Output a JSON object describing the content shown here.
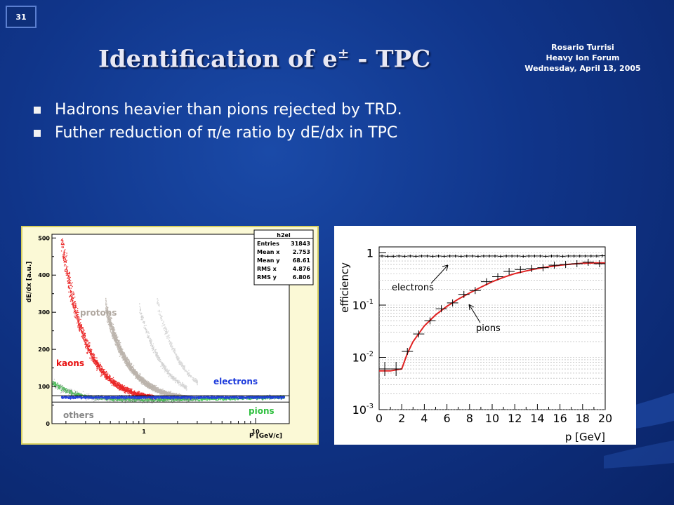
{
  "slide_number": "31",
  "title": {
    "text": "Identification of e",
    "superscript": "±",
    "suffix": " - TPC"
  },
  "author": {
    "name": "Rosario Turrisi",
    "event": "Heavy Ion Forum",
    "date": "Wednesday, April 13, 2005"
  },
  "bullets": [
    "Hadrons heavier than pions rejected by TRD.",
    "Futher reduction of  π/e ratio by dE/dx in TPC"
  ],
  "colors": {
    "background": "#10358a",
    "electrons": "#1e3cdc",
    "kaons": "#e81010",
    "protons": "#b8b0a8",
    "pions": "#30c040",
    "fit": "#e02020"
  },
  "chart_data": [
    {
      "type": "scatter",
      "ylabel": "dE/dx [a.u.]",
      "xlabel": "P [GeV/c]",
      "xscale": "log",
      "ylim": [
        0,
        510
      ],
      "y_ticks": [
        "0",
        "100",
        "200",
        "300",
        "400",
        "500"
      ],
      "x_ticks": [
        "1",
        "10"
      ],
      "labels": {
        "protons": "protons",
        "kaons": "kaons",
        "electrons": "electrons",
        "pions": "pions",
        "others": "others"
      },
      "stats": {
        "name": "h2el",
        "rows": [
          {
            "label": "Entries",
            "value": "31843"
          },
          {
            "label": "Mean x",
            "value": "2.753"
          },
          {
            "label": "Mean y",
            "value": "68.61"
          },
          {
            "label": "RMS x",
            "value": "4.876"
          },
          {
            "label": "RMS y",
            "value": "6.806"
          }
        ]
      }
    },
    {
      "type": "line",
      "ylabel": "efficiency",
      "xlabel": "p [GeV]",
      "yscale": "log",
      "xlim": [
        0,
        20
      ],
      "ylim": [
        0.001,
        1.3
      ],
      "x_ticks": [
        "0",
        "2",
        "4",
        "6",
        "8",
        "10",
        "12",
        "14",
        "16",
        "18",
        "20"
      ],
      "y_ticks": [
        {
          "base": "1",
          "exp": ""
        },
        {
          "base": "10",
          "exp": "-1"
        },
        {
          "base": "10",
          "exp": "-2"
        },
        {
          "base": "10",
          "exp": "-3"
        }
      ],
      "series": [
        {
          "name": "electrons",
          "x": [
            0.25,
            0.75,
            1.25,
            1.75,
            2.25,
            2.75,
            3.25,
            3.75,
            4.25,
            4.75,
            5.25,
            5.75,
            6.25,
            6.75,
            7.25,
            7.75,
            8.25,
            8.75,
            9.25,
            9.75,
            10.25,
            10.75,
            11.25,
            11.75,
            12.25,
            12.75,
            13.25,
            13.75,
            14.25,
            14.75,
            15.25,
            15.75,
            16.25,
            16.75,
            17.25,
            17.75,
            18.25,
            18.75,
            19.25,
            19.75
          ],
          "y": [
            0.87,
            0.86,
            0.86,
            0.87,
            0.86,
            0.87,
            0.86,
            0.87,
            0.87,
            0.86,
            0.87,
            0.86,
            0.87,
            0.87,
            0.86,
            0.87,
            0.87,
            0.86,
            0.87,
            0.87,
            0.87,
            0.86,
            0.87,
            0.87,
            0.87,
            0.86,
            0.87,
            0.87,
            0.87,
            0.86,
            0.87,
            0.87,
            0.86,
            0.87,
            0.87,
            0.87,
            0.87,
            0.87,
            0.87,
            0.88
          ]
        },
        {
          "name": "pions",
          "x": [
            0.5,
            1.5,
            2.5,
            3.5,
            4.5,
            5.5,
            6.5,
            7.5,
            8.5,
            9.5,
            10.5,
            11.5,
            12.5,
            13.5,
            14.5,
            15.5,
            16.5,
            17.5,
            18.5,
            19.5
          ],
          "y": [
            0.006,
            0.006,
            0.013,
            0.028,
            0.05,
            0.085,
            0.11,
            0.16,
            0.19,
            0.28,
            0.35,
            0.44,
            0.48,
            0.5,
            0.52,
            0.58,
            0.6,
            0.62,
            0.66,
            0.62
          ]
        }
      ],
      "fit": {
        "x": [
          0,
          1,
          2,
          2.5,
          3,
          4,
          5,
          6,
          7,
          8,
          9,
          10,
          11,
          12,
          13,
          14,
          15,
          16,
          17,
          18,
          19,
          20
        ],
        "y": [
          0.0055,
          0.0055,
          0.006,
          0.012,
          0.02,
          0.04,
          0.065,
          0.095,
          0.13,
          0.17,
          0.22,
          0.28,
          0.34,
          0.4,
          0.45,
          0.5,
          0.54,
          0.58,
          0.61,
          0.63,
          0.64,
          0.64
        ]
      }
    }
  ]
}
